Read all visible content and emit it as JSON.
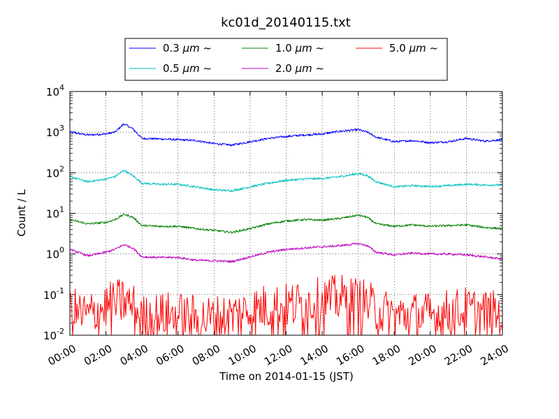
{
  "chart_data": {
    "type": "line",
    "title": "kc01d_20140115.txt",
    "xlabel": "Time on 2014-01-15 (JST)",
    "ylabel": "Count / L",
    "y_scale": "log",
    "xlim": [
      "00:00",
      "24:00"
    ],
    "ylim": [
      0.01,
      10000
    ],
    "grid": true,
    "legend_position": "top-center",
    "x_ticks": [
      "00:00",
      "02:00",
      "04:00",
      "06:00",
      "08:00",
      "10:00",
      "12:00",
      "14:00",
      "16:00",
      "18:00",
      "20:00",
      "22:00",
      "24:00"
    ],
    "y_ticks": [
      {
        "value": 0.01,
        "mant": "10",
        "exp": "-2"
      },
      {
        "value": 0.1,
        "mant": "10",
        "exp": "-1"
      },
      {
        "value": 1,
        "mant": "10",
        "exp": "0"
      },
      {
        "value": 10,
        "mant": "10",
        "exp": "1"
      },
      {
        "value": 100,
        "mant": "10",
        "exp": "2"
      },
      {
        "value": 1000,
        "mant": "10",
        "exp": "3"
      },
      {
        "value": 10000,
        "mant": "10",
        "exp": "4"
      }
    ],
    "x": [
      "00:00",
      "01:00",
      "02:00",
      "02:30",
      "03:00",
      "03:30",
      "04:00",
      "05:00",
      "06:00",
      "07:00",
      "08:00",
      "09:00",
      "10:00",
      "11:00",
      "12:00",
      "13:00",
      "14:00",
      "15:00",
      "16:00",
      "16:30",
      "17:00",
      "18:00",
      "19:00",
      "20:00",
      "21:00",
      "22:00",
      "23:00",
      "24:00"
    ],
    "series": [
      {
        "name": "0.3 μm ~",
        "name_main": "0.3 ",
        "name_unit": "μm",
        "name_tail": " ~",
        "color": "#0000ff",
        "values": [
          1000,
          850,
          900,
          1000,
          1600,
          1200,
          700,
          680,
          650,
          620,
          520,
          480,
          580,
          700,
          780,
          850,
          900,
          1050,
          1150,
          1000,
          750,
          580,
          620,
          550,
          580,
          700,
          600,
          650
        ]
      },
      {
        "name": "0.5 μm ~",
        "name_main": "0.5 ",
        "name_unit": "μm",
        "name_tail": " ~",
        "color": "#00bfbf",
        "values": [
          80,
          60,
          70,
          80,
          115,
          85,
          55,
          52,
          52,
          45,
          38,
          36,
          45,
          55,
          65,
          70,
          72,
          80,
          95,
          85,
          60,
          45,
          48,
          46,
          48,
          52,
          50,
          50
        ]
      },
      {
        "name": "1.0 μm ~",
        "name_main": "1.0 ",
        "name_unit": "μm",
        "name_tail": " ~",
        "color": "#008000",
        "values": [
          7,
          5.5,
          6,
          7,
          9.5,
          8,
          5,
          4.8,
          4.8,
          4.2,
          3.8,
          3.4,
          4.2,
          5.5,
          6.5,
          7,
          6.8,
          7.5,
          9,
          8,
          5.5,
          4.8,
          5.2,
          4.8,
          5,
          5.2,
          4.5,
          4.2
        ]
      },
      {
        "name": "2.0 μm ~",
        "name_main": "2.0 ",
        "name_unit": "μm",
        "name_tail": " ~",
        "color": "#bf00bf",
        "values": [
          1.3,
          0.9,
          1.1,
          1.3,
          1.7,
          1.4,
          0.85,
          0.82,
          0.82,
          0.7,
          0.68,
          0.65,
          0.85,
          1.1,
          1.3,
          1.4,
          1.5,
          1.6,
          1.8,
          1.6,
          1.1,
          0.95,
          1.05,
          1,
          1,
          0.95,
          0.85,
          0.75
        ]
      },
      {
        "name": "5.0 μm ~",
        "name_main": "5.0 ",
        "name_unit": "μm",
        "name_tail": " ~",
        "color": "#ff0000",
        "noisy": true,
        "values": [
          0.04,
          0.03,
          0.05,
          0.06,
          0.07,
          0.05,
          0.025,
          0.03,
          0.03,
          0.025,
          0.025,
          0.03,
          0.04,
          0.05,
          0.05,
          0.06,
          0.07,
          0.08,
          0.07,
          0.06,
          0.04,
          0.03,
          0.03,
          0.03,
          0.035,
          0.04,
          0.035,
          0.03
        ]
      }
    ]
  }
}
